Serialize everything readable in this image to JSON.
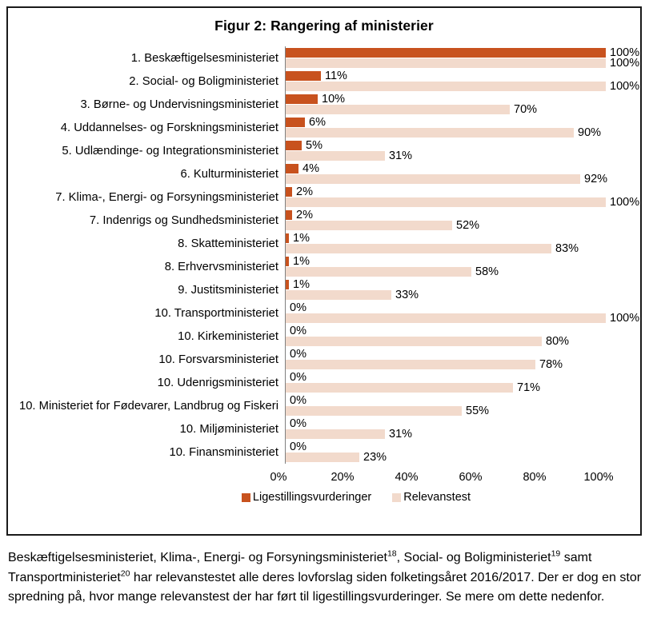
{
  "figure": {
    "title": "Figur 2: Rangering af ministerier"
  },
  "chart_data": {
    "type": "bar",
    "orientation": "horizontal",
    "title": "Figur 2: Rangering af ministerier",
    "categories": [
      "1. Beskæftigelsesministeriet",
      "2. Social- og Boligministeriet",
      "3. Børne- og Undervisningsministeriet",
      "4. Uddannelses- og Forskningsministeriet",
      "5. Udlændinge- og Integrationsministeriet",
      "6. Kulturministeriet",
      "7. Klima-, Energi- og Forsyningsministeriet",
      "7. Indenrigs og Sundhedsministeriet",
      "8. Skatteministeriet",
      "8. Erhvervsministeriet",
      "9. Justitsministeriet",
      "10. Transportministeriet",
      "10. Kirkeministeriet",
      "10. Forsvarsministeriet",
      "10. Udenrigsministeriet",
      "10. Ministeriet for Fødevarer, Landbrug og Fiskeri",
      "10. Miljøministeriet",
      "10. Finansministeriet"
    ],
    "series": [
      {
        "name": "Ligestillingsvurderinger",
        "color": "#c8521e",
        "values": [
          100,
          11,
          10,
          6,
          5,
          4,
          2,
          2,
          1,
          1,
          1,
          0,
          0,
          0,
          0,
          0,
          0,
          0
        ]
      },
      {
        "name": "Relevanstest",
        "color": "#f2dacc",
        "values": [
          100,
          100,
          70,
          90,
          31,
          92,
          100,
          52,
          83,
          58,
          33,
          100,
          80,
          78,
          71,
          55,
          31,
          23
        ]
      }
    ],
    "value_suffix": "%",
    "x_ticks": [
      "0%",
      "20%",
      "40%",
      "60%",
      "80%",
      "100%"
    ],
    "xlim": [
      0,
      100
    ],
    "grid": false,
    "legend_position": "bottom",
    "data_labels": true
  },
  "body_text": {
    "segments": [
      {
        "text": "Beskæftigelsesministeriet, Klima-, Energi- og Forsyningsministeriet"
      },
      {
        "sup": "18"
      },
      {
        "text": ", Social- og Boligministeriet"
      },
      {
        "sup": "19"
      },
      {
        "text": " samt Transportministeriet"
      },
      {
        "sup": "20"
      },
      {
        "text": " har relevanstestet alle deres lovforslag siden folketingsåret 2016/2017. Der er dog en stor spredning på, hvor mange relevanstest der har ført til ligestillingsvurderinger. Se mere om dette nedenfor."
      }
    ]
  }
}
